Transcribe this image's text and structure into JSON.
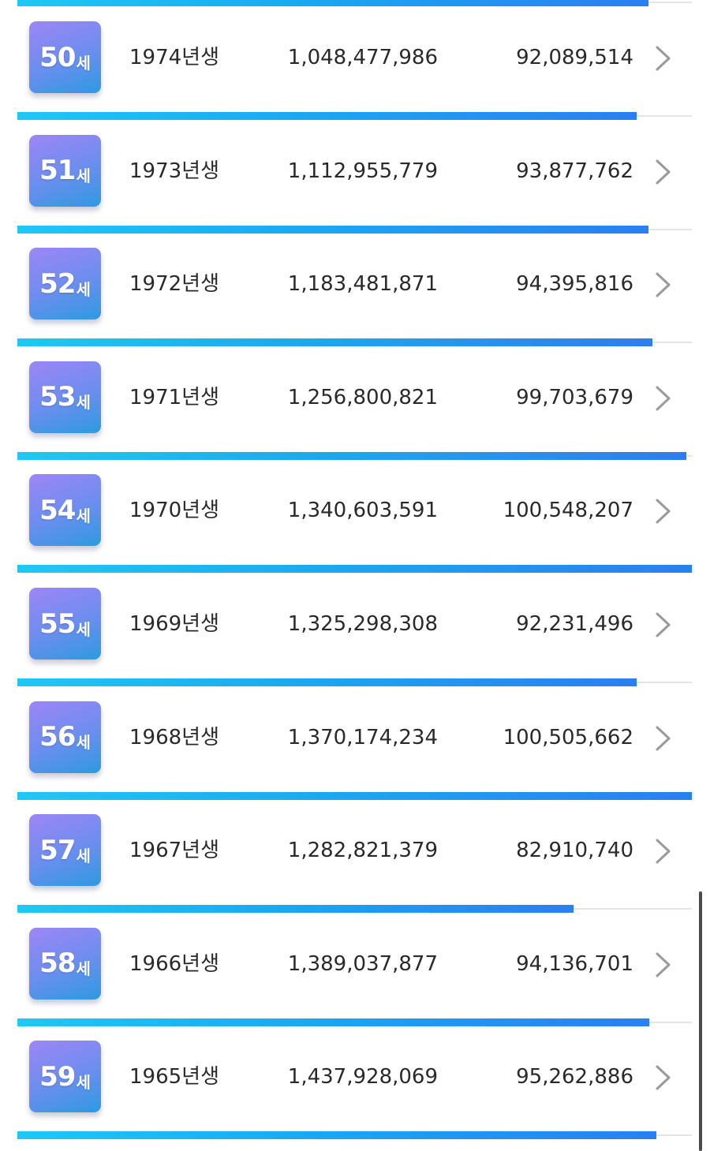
{
  "age_unit": "세",
  "birth_suffix": "년생",
  "rows": [
    {
      "age": "50",
      "birth_year": "1974",
      "total": "1,048,477,986",
      "monthly": "92,089,514",
      "bar_fraction": 0.918
    },
    {
      "age": "51",
      "birth_year": "1973",
      "total": "1,112,955,779",
      "monthly": "93,877,762",
      "bar_fraction": 0.936
    },
    {
      "age": "52",
      "birth_year": "1972",
      "total": "1,183,481,871",
      "monthly": "94,395,816",
      "bar_fraction": 0.941
    },
    {
      "age": "53",
      "birth_year": "1971",
      "total": "1,256,800,821",
      "monthly": "99,703,679",
      "bar_fraction": 0.992
    },
    {
      "age": "54",
      "birth_year": "1970",
      "total": "1,340,603,591",
      "monthly": "100,548,207",
      "bar_fraction": 1.0
    },
    {
      "age": "55",
      "birth_year": "1969",
      "total": "1,325,298,308",
      "monthly": "92,231,496",
      "bar_fraction": 0.918
    },
    {
      "age": "56",
      "birth_year": "1968",
      "total": "1,370,174,234",
      "monthly": "100,505,662",
      "bar_fraction": 1.0
    },
    {
      "age": "57",
      "birth_year": "1967",
      "total": "1,282,821,379",
      "monthly": "82,910,740",
      "bar_fraction": 0.825
    },
    {
      "age": "58",
      "birth_year": "1966",
      "total": "1,389,037,877",
      "monthly": "94,136,701",
      "bar_fraction": 0.937
    },
    {
      "age": "59",
      "birth_year": "1965",
      "total": "1,437,928,069",
      "monthly": "95,262,886",
      "bar_fraction": 0.947
    }
  ],
  "top_bar_fraction": 0.936,
  "colors": {
    "bar_start": "#1ec8f4",
    "bar_end": "#2a7ff0",
    "badge_top": "#9d86f5",
    "badge_bottom": "#2e9ae0",
    "chevron": "#9a9a9a"
  },
  "icons": {
    "row_arrow": "chevron-right-icon"
  }
}
